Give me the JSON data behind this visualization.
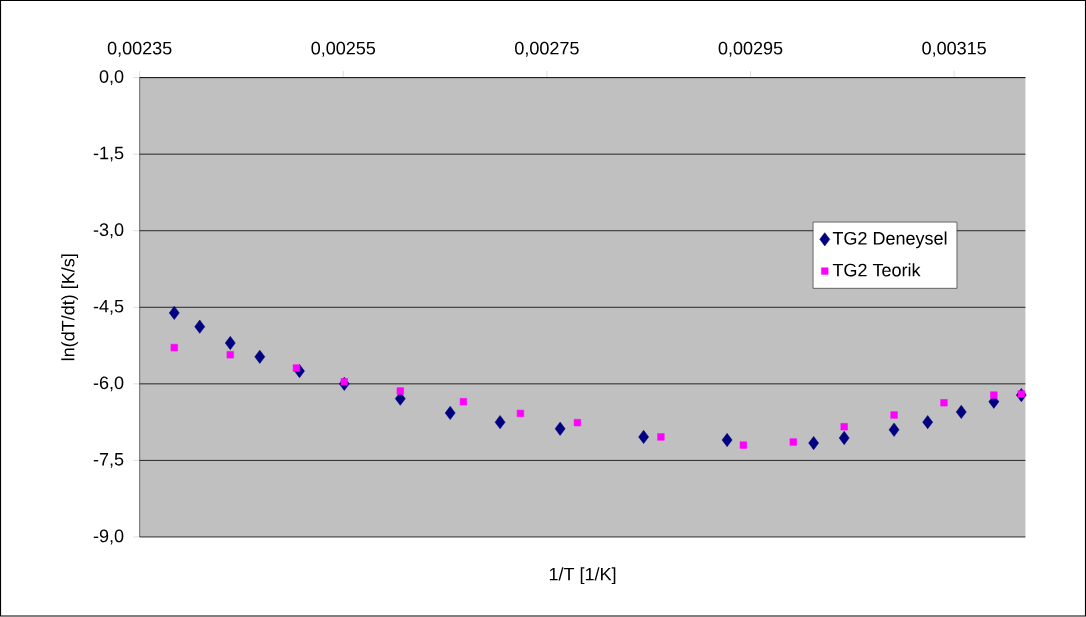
{
  "chart_data": {
    "type": "scatter",
    "xlabel": "1/T [1/K]",
    "ylabel": "ln(dT/dt) [K/s]",
    "xlim": [
      0.00235,
      0.00322
    ],
    "ylim": [
      -9,
      0
    ],
    "xticks": [
      {
        "value": 0.00235,
        "label": "0,00235"
      },
      {
        "value": 0.00255,
        "label": "0,00255"
      },
      {
        "value": 0.00275,
        "label": "0,00275"
      },
      {
        "value": 0.00295,
        "label": "0,00295"
      },
      {
        "value": 0.00315,
        "label": "0,00315"
      }
    ],
    "yticks": [
      {
        "value": 0,
        "label": "0,0"
      },
      {
        "value": -1.5,
        "label": "-1,5"
      },
      {
        "value": -3,
        "label": "-3,0"
      },
      {
        "value": -4.5,
        "label": "-4,5"
      },
      {
        "value": -6,
        "label": "-6,0"
      },
      {
        "value": -7.5,
        "label": "-7,5"
      },
      {
        "value": -9,
        "label": "-9,0"
      }
    ],
    "grid": "y",
    "legend": "right",
    "series": [
      {
        "name": "TG2 Deneysel",
        "color": "#000080",
        "marker": "diamond",
        "x": [
          0.002384,
          0.002409,
          0.002439,
          0.002468,
          0.002507,
          0.002551,
          0.002606,
          0.002655,
          0.002704,
          0.002763,
          0.002845,
          0.002927,
          0.003012,
          0.003042,
          0.003091,
          0.003124,
          0.003157,
          0.003189,
          0.003216
        ],
        "values": [
          -4.61,
          -4.88,
          -5.2,
          -5.47,
          -5.75,
          -6.0,
          -6.29,
          -6.57,
          -6.75,
          -6.88,
          -7.04,
          -7.1,
          -7.16,
          -7.06,
          -6.9,
          -6.75,
          -6.55,
          -6.35,
          -6.22
        ]
      },
      {
        "name": "TG2 Teorik",
        "color": "#ff00ff",
        "marker": "square",
        "x": [
          0.002384,
          0.002439,
          0.002504,
          0.002551,
          0.002606,
          0.002668,
          0.002724,
          0.00278,
          0.002862,
          0.002943,
          0.002992,
          0.003042,
          0.003091,
          0.00314,
          0.003189,
          0.003216
        ],
        "values": [
          -5.29,
          -5.43,
          -5.69,
          -5.96,
          -6.14,
          -6.35,
          -6.58,
          -6.76,
          -7.04,
          -7.2,
          -7.14,
          -6.84,
          -6.61,
          -6.37,
          -6.22,
          -6.2
        ]
      }
    ]
  }
}
